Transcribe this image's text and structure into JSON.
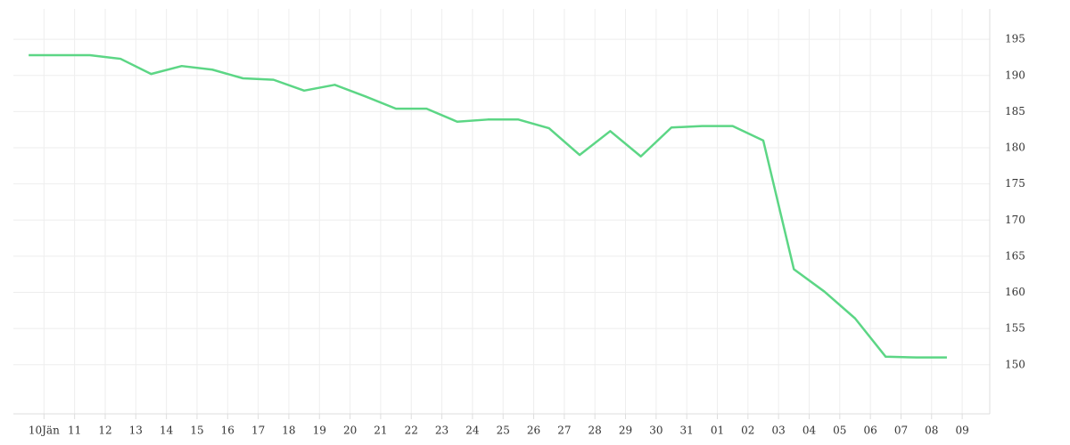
{
  "chart_data": {
    "type": "line",
    "x": [
      -0.5,
      0.5,
      1.5,
      2.5,
      3.5,
      4.5,
      5.5,
      6.5,
      7.5,
      8.5,
      9.5,
      10.5,
      11.5,
      12.5,
      13.5,
      14.5,
      15.5,
      16.5,
      17.5,
      18.5,
      19.5,
      20.5,
      21.5,
      22.5,
      23.5,
      24.5,
      25.5,
      26.5,
      27.5,
      28.5,
      29.5
    ],
    "series": [
      {
        "color": "#5cd685",
        "values": [
          192.8,
          192.8,
          192.8,
          192.3,
          190.2,
          191.3,
          190.8,
          189.6,
          189.4,
          187.9,
          188.7,
          187.1,
          185.4,
          185.4,
          183.6,
          183.9,
          183.9,
          182.7,
          179.0,
          182.3,
          178.8,
          182.8,
          183.0,
          183.0,
          181.0,
          163.2,
          160.1,
          156.4,
          151.1,
          151.0,
          151.0
        ]
      }
    ],
    "xlim": [
      -1,
      30.9
    ],
    "xticks": [
      {
        "value": 0,
        "label": "10Jän"
      },
      {
        "value": 1,
        "label": "11"
      },
      {
        "value": 2,
        "label": "12"
      },
      {
        "value": 3,
        "label": "13"
      },
      {
        "value": 4,
        "label": "14"
      },
      {
        "value": 5,
        "label": "15"
      },
      {
        "value": 6,
        "label": "16"
      },
      {
        "value": 7,
        "label": "17"
      },
      {
        "value": 8,
        "label": "18"
      },
      {
        "value": 9,
        "label": "19"
      },
      {
        "value": 10,
        "label": "20"
      },
      {
        "value": 11,
        "label": "21"
      },
      {
        "value": 12,
        "label": "22"
      },
      {
        "value": 13,
        "label": "23"
      },
      {
        "value": 14,
        "label": "24"
      },
      {
        "value": 15,
        "label": "25"
      },
      {
        "value": 16,
        "label": "26"
      },
      {
        "value": 17,
        "label": "27"
      },
      {
        "value": 18,
        "label": "28"
      },
      {
        "value": 19,
        "label": "29"
      },
      {
        "value": 20,
        "label": "30"
      },
      {
        "value": 21,
        "label": "31"
      },
      {
        "value": 22,
        "label": "01"
      },
      {
        "value": 23,
        "label": "02"
      },
      {
        "value": 24,
        "label": "03"
      },
      {
        "value": 25,
        "label": "04"
      },
      {
        "value": 26,
        "label": "05"
      },
      {
        "value": 27,
        "label": "06"
      },
      {
        "value": 28,
        "label": "07"
      },
      {
        "value": 29,
        "label": "08"
      },
      {
        "value": 30,
        "label": "09"
      }
    ],
    "ylim": [
      143.2,
      199.2
    ],
    "yticks": [
      150,
      155,
      160,
      165,
      170,
      175,
      180,
      185,
      190,
      195
    ],
    "grid": true
  }
}
